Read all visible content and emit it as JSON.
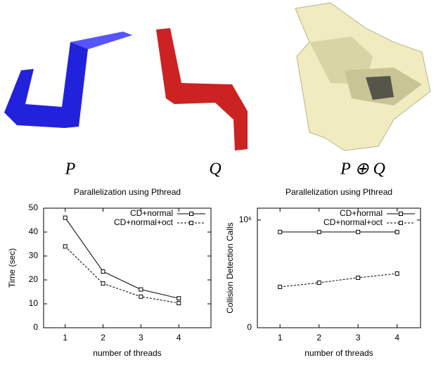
{
  "figure": {
    "panels": [
      {
        "label": "P"
      },
      {
        "label": "Q"
      },
      {
        "label": "P ⊕ Q"
      }
    ]
  },
  "chart_data": [
    {
      "type": "line",
      "title": "Parallelization using Pthread",
      "x_label": "number of threads",
      "y_label": "Time (sec)",
      "x": [
        1,
        2,
        3,
        4
      ],
      "xlim": [
        0.43,
        4.85
      ],
      "xticks": [
        1,
        2,
        3,
        4
      ],
      "ylim": [
        0,
        50
      ],
      "yticks": [
        0,
        10,
        20,
        30,
        40,
        50
      ],
      "legend": "top-right",
      "series": [
        {
          "name": "CD+normal",
          "color": "#000000",
          "line_style": "solid",
          "values": [
            46,
            23.5,
            16,
            12.3
          ]
        },
        {
          "name": "CD+normal+oct",
          "color": "#000000",
          "line_style": "dashed",
          "values": [
            34,
            18.5,
            13,
            10.3
          ]
        }
      ]
    },
    {
      "type": "line",
      "title": "Parallelization using Pthread",
      "x_label": "number of threads",
      "y_label": "Collision Detection Calls",
      "x": [
        1,
        2,
        3,
        4
      ],
      "xlim": [
        0.42,
        4.6
      ],
      "xticks": [
        1,
        2,
        3,
        4
      ],
      "ylim": [
        0,
        1110000
      ],
      "yticks": [
        0,
        {
          "value": 1000000,
          "label": "10⁶"
        }
      ],
      "legend": "top-right",
      "series": [
        {
          "name": "CD+normal",
          "color": "#000000",
          "line_style": "solid",
          "values": [
            889000,
            889000,
            889000,
            889000
          ]
        },
        {
          "name": "CD+normal+oct",
          "color": "#000000",
          "line_style": "dashed",
          "values": [
            379000,
            418000,
            464000,
            503000
          ]
        }
      ]
    }
  ]
}
